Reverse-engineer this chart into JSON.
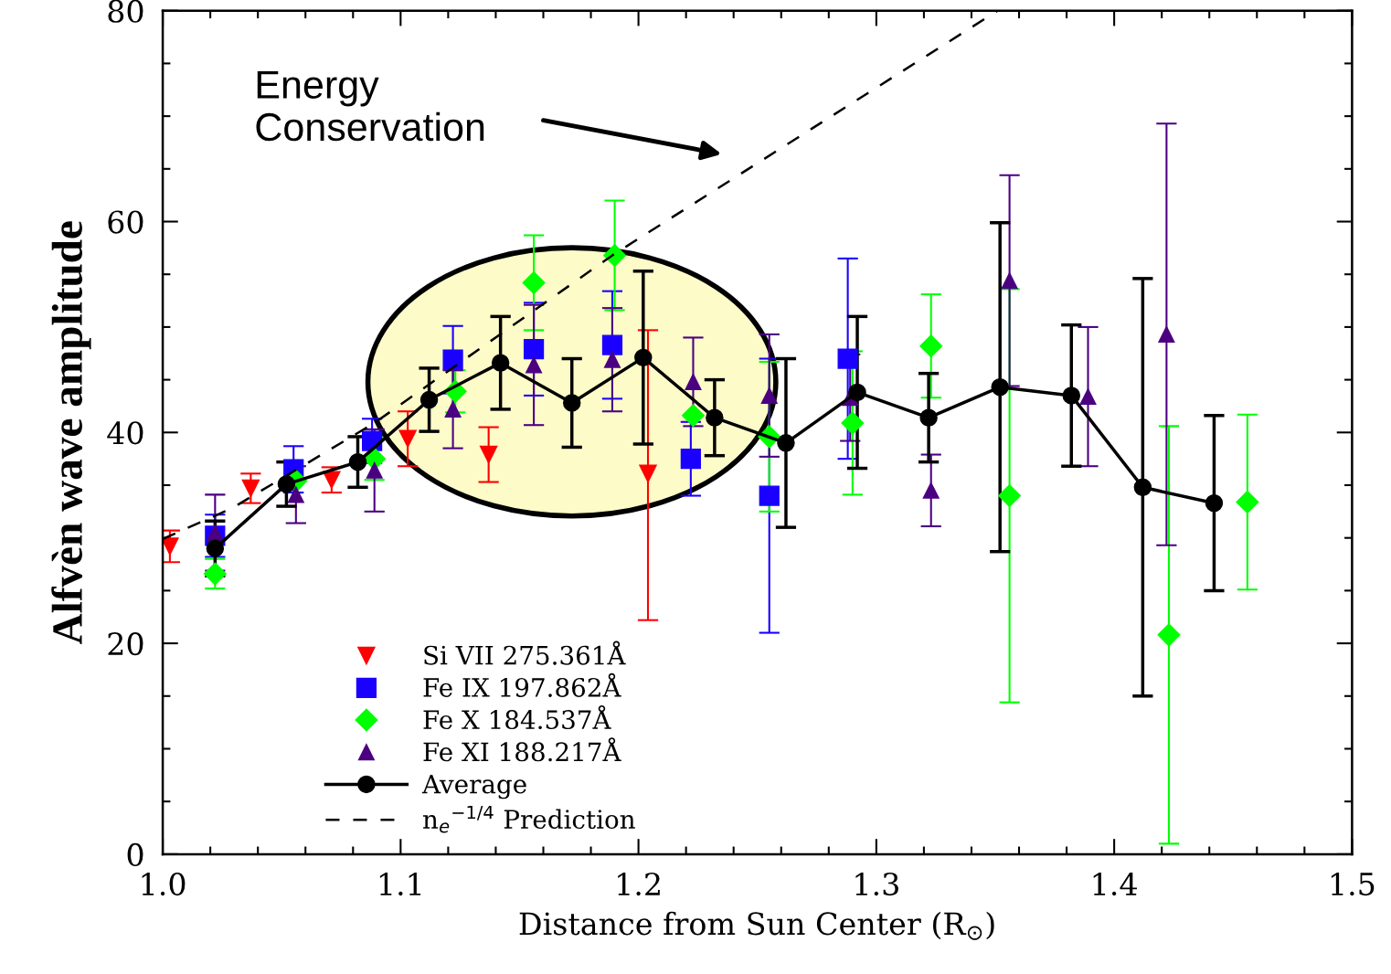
{
  "chart_data": {
    "type": "scatter",
    "xlabel": "Distance from Sun Center (R$_{⊙}$)",
    "ylabel": "Alfvèn wave amplitude",
    "xlim": [
      1.0,
      1.5
    ],
    "xticks": [
      {
        "value": 1.0,
        "label": "1.0"
      },
      {
        "value": 1.1,
        "label": "1.1"
      },
      {
        "value": 1.2,
        "label": "1.2"
      },
      {
        "value": 1.3,
        "label": "1.3"
      },
      {
        "value": 1.4,
        "label": "1.4"
      },
      {
        "value": 1.5,
        "label": "1.5"
      }
    ],
    "ylim": [
      0,
      80
    ],
    "yticks": [
      0,
      20,
      40,
      60,
      80
    ],
    "grid": false,
    "legend": "bottom left",
    "annotations": [
      "Energy\nConservation"
    ],
    "series": [
      {
        "name": "Si VII 275.361Å",
        "marker": "triangle_down",
        "color": "#ff0000",
        "x": [
          1.003,
          1.037,
          1.071,
          1.103,
          1.137,
          1.204
        ],
        "values": [
          29.2,
          34.7,
          35.5,
          39.4,
          37.9,
          36.1
        ],
        "errors": [
          1.5,
          1.4,
          1.2,
          2.6,
          2.6,
          [
            22.2,
            49.7
          ]
        ]
      },
      {
        "name": "Fe IX 197.862Å",
        "marker": "square",
        "color": "#1a00ff",
        "x": [
          1.022,
          1.055,
          1.088,
          1.122,
          1.156,
          1.189,
          1.222,
          1.255,
          1.288
        ],
        "values": [
          30.2,
          36.5,
          39.2,
          46.9,
          47.9,
          48.3,
          37.5,
          34.0,
          47.0
        ],
        "errors": [
          2.0,
          2.2,
          2.1,
          3.2,
          4.4,
          5.1,
          3.5,
          13.0,
          9.5
        ]
      },
      {
        "name": "Fe X 184.537Å",
        "marker": "diamond",
        "color": "#00ff00",
        "x": [
          1.022,
          1.056,
          1.089,
          1.123,
          1.156,
          1.19,
          1.223,
          1.255,
          1.29,
          1.323,
          1.356,
          1.423,
          1.456
        ],
        "values": [
          26.6,
          35.4,
          37.5,
          43.9,
          54.2,
          56.8,
          41.6,
          39.6,
          40.9,
          48.2,
          34.0,
          20.8,
          33.4
        ],
        "errors": [
          1.4,
          null,
          2.0,
          2.0,
          4.5,
          5.2,
          null,
          7.1,
          6.8,
          4.9,
          19.6,
          19.8,
          8.3
        ]
      },
      {
        "name": "Fe XI 188.217Å",
        "marker": "triangle",
        "color": "#4b0082",
        "x": [
          1.022,
          1.056,
          1.089,
          1.122,
          1.156,
          1.189,
          1.223,
          1.255,
          1.289,
          1.323,
          1.356,
          1.389,
          1.422
        ],
        "values": [
          30.5,
          34.1,
          36.4,
          42.2,
          46.4,
          46.9,
          44.8,
          43.5,
          43.3,
          34.5,
          54.4,
          43.4,
          49.3
        ],
        "errors": [
          3.6,
          2.7,
          3.9,
          3.7,
          5.7,
          4.9,
          4.2,
          5.8,
          4.1,
          3.4,
          10.0,
          6.6,
          20.0
        ]
      },
      {
        "name": "Average",
        "type": "line",
        "marker": "circle",
        "line_style": "solid",
        "color": "#000000",
        "x": [
          1.022,
          1.052,
          1.082,
          1.112,
          1.142,
          1.172,
          1.202,
          1.232,
          1.262,
          1.292,
          1.322,
          1.352,
          1.382,
          1.412,
          1.442
        ],
        "values": [
          29.0,
          35.1,
          37.2,
          43.1,
          46.6,
          42.8,
          47.1,
          41.4,
          39.0,
          43.8,
          41.4,
          44.3,
          43.5,
          34.8,
          33.3
        ],
        "errors": [
          2.6,
          2.1,
          2.4,
          3.0,
          4.4,
          4.2,
          8.2,
          3.6,
          8.0,
          7.2,
          4.2,
          15.6,
          6.7,
          19.8,
          8.3
        ]
      },
      {
        "name": "n$_{e}$$^{−1/4}$ Prediction",
        "type": "line",
        "marker": "none",
        "line_style": "dashed",
        "color": "#000000",
        "x": [
          1.0,
          1.029,
          1.089,
          1.189,
          1.351
        ],
        "values": [
          29.9,
          32.8,
          40.9,
          56.8,
          80.0
        ]
      }
    ]
  }
}
